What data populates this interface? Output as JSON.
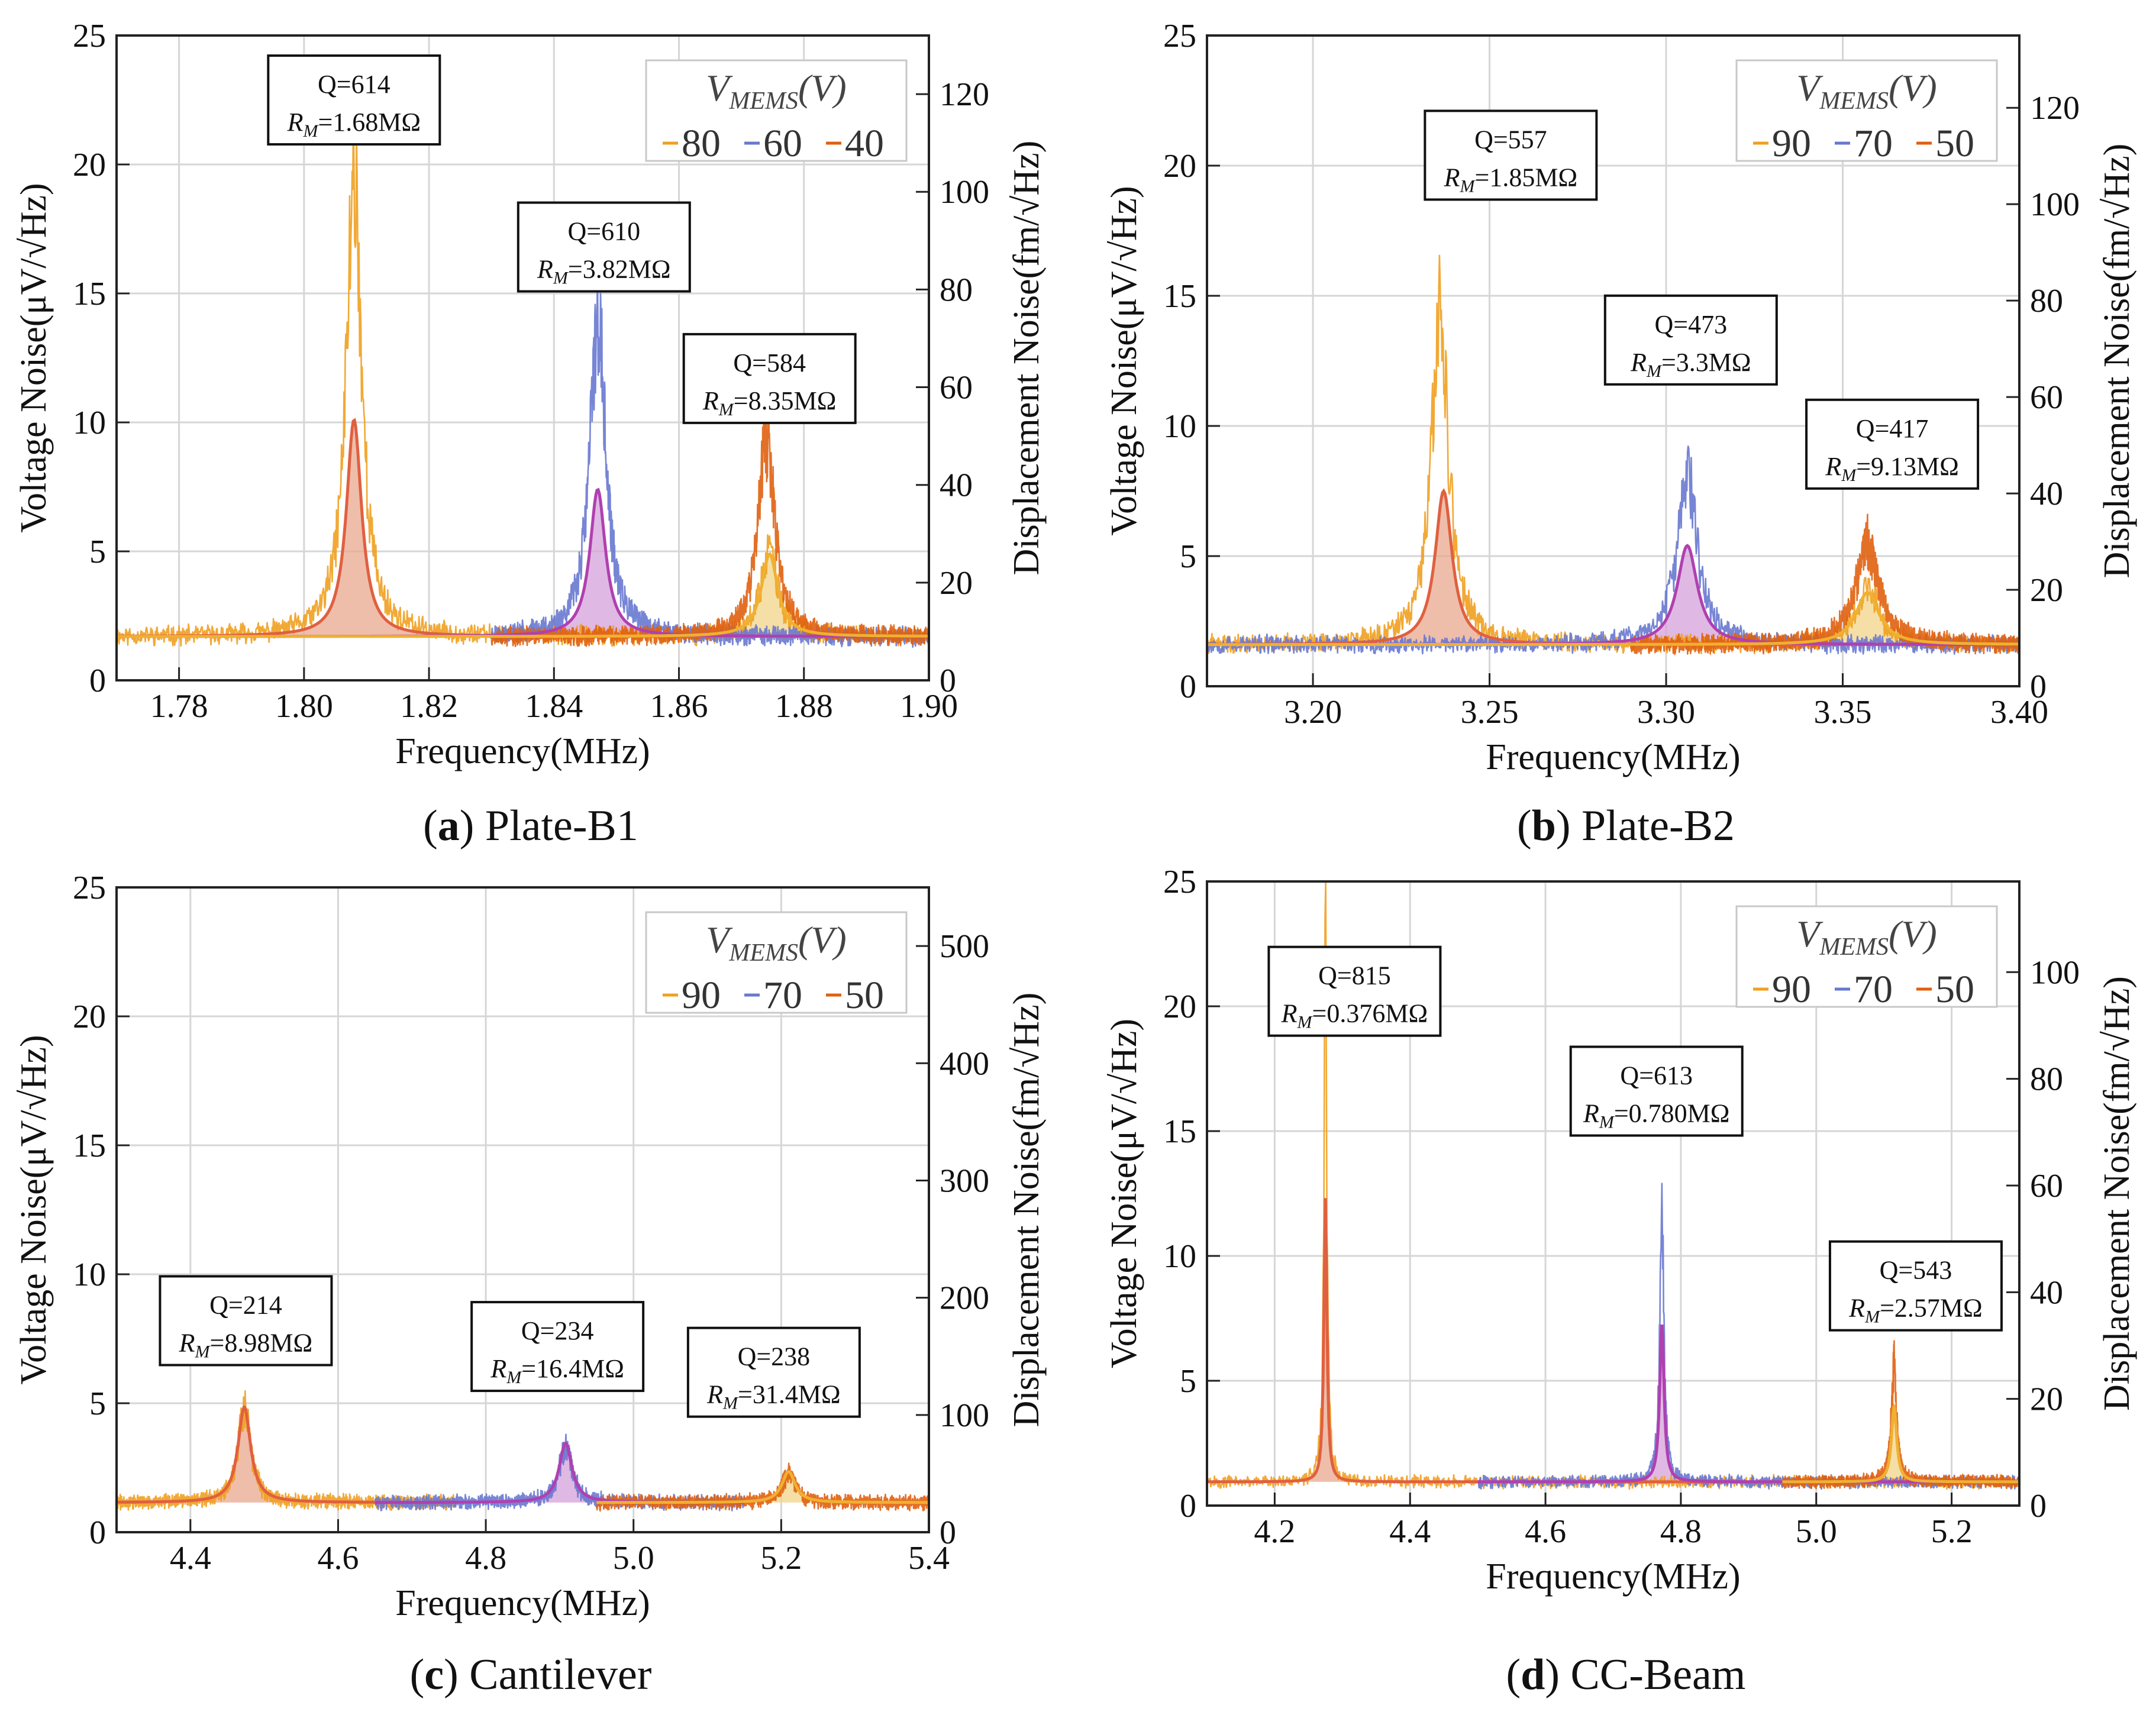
{
  "chart_data": [
    {
      "type": "line",
      "panel_letter": "a",
      "caption": "Plate-B1",
      "xlabel": "Frequency(MHz)",
      "ylabel_left": "Voltage Noise(μV/√Hz)",
      "ylabel_right": "Displacement Noise(fm/√Hz)",
      "xlim": [
        1.77,
        1.9
      ],
      "ylim": [
        0,
        25
      ],
      "ylim_right": [
        0,
        132
      ],
      "x_ticks": [
        1.78,
        1.8,
        1.82,
        1.84,
        1.86,
        1.88,
        1.9
      ],
      "x_tick_labels": [
        "1.78",
        "1.80",
        "1.82",
        "1.84",
        "1.86",
        "1.88",
        "1.90"
      ],
      "y_ticks": [
        0,
        5,
        10,
        15,
        20,
        25
      ],
      "y_tick_labels": [
        "0",
        "5",
        "10",
        "15",
        "20",
        "25"
      ],
      "y_right_ticks": [
        0,
        20,
        40,
        60,
        80,
        100,
        120
      ],
      "y_right_tick_labels": [
        "0",
        "20",
        "40",
        "60",
        "80",
        "100",
        "120"
      ],
      "grid": true,
      "baseline": 1.7,
      "legend": {
        "title": "V_MEMS(V)",
        "position": "top-right",
        "entries": [
          "80",
          "60",
          "40"
        ]
      },
      "series": [
        {
          "name": "80",
          "role": "noise",
          "color": "#F0A020",
          "x_range": [
            1.77,
            1.9
          ],
          "peaks": [
            {
              "f0": 1.808,
              "amp": 18.2,
              "q": 614
            },
            {
              "f0": 1.8745,
              "amp": 3.4,
              "q": 584
            }
          ],
          "spike": 20.0,
          "seed": 11
        },
        {
          "name": "60",
          "role": "noise",
          "color": "#6878D0",
          "x_range": [
            1.83,
            1.9
          ],
          "peaks": [
            {
              "f0": 1.847,
              "amp": 12.5,
              "q": 610
            }
          ],
          "spike": 14.3,
          "seed": 23
        },
        {
          "name": "40",
          "role": "noise",
          "color": "#E06010",
          "x_range": [
            1.83,
            1.9
          ],
          "peaks": [
            {
              "f0": 1.874,
              "amp": 7.6,
              "q": 584
            }
          ],
          "spike": 9.5,
          "seed": 37
        },
        {
          "name": "fit-80",
          "role": "fit",
          "color": "#E06040",
          "fill": "#EAA88E",
          "x_range": [
            1.77,
            1.9
          ],
          "peaks": [
            {
              "f0": 1.808,
              "amp": 8.4,
              "q": 614
            }
          ]
        },
        {
          "name": "fit-60",
          "role": "fit",
          "color": "#B040B0",
          "fill": "#D4A2DA",
          "x_range": [
            1.77,
            1.9
          ],
          "peaks": [
            {
              "f0": 1.847,
              "amp": 5.7,
              "q": 610
            }
          ]
        },
        {
          "name": "fit-40",
          "role": "fit",
          "color": "#F0B030",
          "fill": "#F2D488",
          "x_range": [
            1.77,
            1.9
          ],
          "peaks": [
            {
              "f0": 1.8745,
              "amp": 3.2,
              "q": 584
            }
          ]
        }
      ],
      "annotations": [
        {
          "q": "Q=614",
          "r_prefix": "R",
          "r_sub": "M",
          "r_value": "=1.68MΩ",
          "x": 1.808,
          "y": 22.5
        },
        {
          "q": "Q=610",
          "r_prefix": "R",
          "r_sub": "M",
          "r_value": "=3.82MΩ",
          "x": 1.848,
          "y": 16.8
        },
        {
          "q": "Q=584",
          "r_prefix": "R",
          "r_sub": "M",
          "r_value": "=8.35MΩ",
          "x": 1.8745,
          "y": 11.7
        }
      ]
    },
    {
      "type": "line",
      "panel_letter": "b",
      "caption": "Plate-B2",
      "xlabel": "Frequency(MHz)",
      "ylabel_left": "Voltage Noise(μV/√Hz)",
      "ylabel_right": "Displacement Noise(fm/√Hz)",
      "xlim": [
        3.17,
        3.4
      ],
      "ylim": [
        0,
        25
      ],
      "ylim_right": [
        0,
        135
      ],
      "x_ticks": [
        3.2,
        3.25,
        3.3,
        3.35,
        3.4
      ],
      "x_tick_labels": [
        "3.20",
        "3.25",
        "3.30",
        "3.35",
        "3.40"
      ],
      "y_ticks": [
        0,
        5,
        10,
        15,
        20,
        25
      ],
      "y_tick_labels": [
        "0",
        "5",
        "10",
        "15",
        "20",
        "25"
      ],
      "y_right_ticks": [
        0,
        20,
        40,
        60,
        80,
        100,
        120
      ],
      "y_right_tick_labels": [
        "0",
        "20",
        "40",
        "60",
        "80",
        "100",
        "120"
      ],
      "grid": true,
      "baseline": 1.6,
      "legend": {
        "title": "V_MEMS(V)",
        "position": "top-right",
        "entries": [
          "90",
          "70",
          "50"
        ]
      },
      "series": [
        {
          "name": "90",
          "role": "noise",
          "color": "#F0A020",
          "x_range": [
            3.17,
            3.4
          ],
          "peaks": [
            {
              "f0": 3.236,
              "amp": 12.6,
              "q": 557
            },
            {
              "f0": 3.357,
              "amp": 2.1,
              "q": 417
            }
          ],
          "spike": 15.7,
          "seed": 41
        },
        {
          "name": "70",
          "role": "noise",
          "color": "#6878D0",
          "x_range": [
            3.17,
            3.4
          ],
          "peaks": [
            {
              "f0": 3.306,
              "amp": 6.4,
              "q": 473
            }
          ],
          "spike": 9.0,
          "seed": 53
        },
        {
          "name": "50",
          "role": "noise",
          "color": "#E06010",
          "x_range": [
            3.29,
            3.4
          ],
          "peaks": [
            {
              "f0": 3.357,
              "amp": 3.8,
              "q": 417
            }
          ],
          "spike": 6.6,
          "seed": 67
        },
        {
          "name": "fit-90",
          "role": "fit",
          "color": "#E06040",
          "fill": "#EAA88E",
          "x_range": [
            3.17,
            3.4
          ],
          "peaks": [
            {
              "f0": 3.237,
              "amp": 5.9,
              "q": 557
            }
          ]
        },
        {
          "name": "fit-70",
          "role": "fit",
          "color": "#B040B0",
          "fill": "#D4A2DA",
          "x_range": [
            3.17,
            3.4
          ],
          "peaks": [
            {
              "f0": 3.306,
              "amp": 3.8,
              "q": 473
            }
          ]
        },
        {
          "name": "fit-50",
          "role": "fit",
          "color": "#F0B030",
          "fill": "#F2D488",
          "x_range": [
            3.17,
            3.4
          ],
          "peaks": [
            {
              "f0": 3.357,
              "amp": 2.0,
              "q": 417
            }
          ]
        }
      ],
      "annotations": [
        {
          "q": "Q=557",
          "r_prefix": "R",
          "r_sub": "M",
          "r_value": "=1.85MΩ",
          "x": 3.256,
          "y": 20.4
        },
        {
          "q": "Q=473",
          "r_prefix": "R",
          "r_sub": "M",
          "r_value": "=3.3MΩ",
          "x": 3.307,
          "y": 13.3
        },
        {
          "q": "Q=417",
          "r_prefix": "R",
          "r_sub": "M",
          "r_value": "=9.13MΩ",
          "x": 3.364,
          "y": 9.3
        }
      ]
    },
    {
      "type": "line",
      "panel_letter": "c",
      "caption": "Cantilever",
      "xlabel": "Frequency(MHz)",
      "ylabel_left": "Voltage Noise(μV/√Hz)",
      "ylabel_right": "Displacement Noise(fm/√Hz)",
      "xlim": [
        4.3,
        5.4
      ],
      "ylim": [
        0,
        25
      ],
      "ylim_right": [
        0,
        550
      ],
      "x_ticks": [
        4.4,
        4.6,
        4.8,
        5.0,
        5.2,
        5.4
      ],
      "x_tick_labels": [
        "4.4",
        "4.6",
        "4.8",
        "5.0",
        "5.2",
        "5.4"
      ],
      "y_ticks": [
        0,
        5,
        10,
        15,
        20,
        25
      ],
      "y_tick_labels": [
        "0",
        "5",
        "10",
        "15",
        "20",
        "25"
      ],
      "y_right_ticks": [
        0,
        100,
        200,
        300,
        400,
        500
      ],
      "y_right_tick_labels": [
        "0",
        "100",
        "200",
        "300",
        "400",
        "500"
      ],
      "grid": true,
      "baseline": 1.15,
      "legend": {
        "title": "V_MEMS(V)",
        "position": "top-right",
        "entries": [
          "90",
          "70",
          "50"
        ]
      },
      "series": [
        {
          "name": "90",
          "role": "noise",
          "color": "#F0A020",
          "x_range": [
            4.3,
            4.76
          ],
          "peaks": [
            {
              "f0": 4.473,
              "amp": 3.6,
              "q": 214
            }
          ],
          "spike": 5.0,
          "seed": 71
        },
        {
          "name": "70",
          "role": "noise",
          "color": "#6878D0",
          "x_range": [
            4.65,
            5.15
          ],
          "peaks": [
            {
              "f0": 4.908,
              "amp": 2.2,
              "q": 234
            }
          ],
          "spike": 3.5,
          "seed": 83
        },
        {
          "name": "50",
          "role": "noise",
          "color": "#E06010",
          "x_range": [
            4.95,
            5.4
          ],
          "peaks": [
            {
              "f0": 5.21,
              "amp": 1.1,
              "q": 238
            }
          ],
          "spike": 2.5,
          "seed": 97
        },
        {
          "name": "fit-90",
          "role": "fit",
          "color": "#E06040",
          "fill": "#EAA88E",
          "x_range": [
            4.3,
            4.76
          ],
          "peaks": [
            {
              "f0": 4.473,
              "amp": 3.7,
              "q": 214
            }
          ]
        },
        {
          "name": "fit-70",
          "role": "fit",
          "color": "#B040B0",
          "fill": "#D4A2DA",
          "x_range": [
            4.65,
            5.15
          ],
          "peaks": [
            {
              "f0": 4.908,
              "amp": 2.3,
              "q": 234
            }
          ]
        },
        {
          "name": "fit-50",
          "role": "fit",
          "color": "#F0B030",
          "fill": "#F2D488",
          "x_range": [
            4.95,
            5.4
          ],
          "peaks": [
            {
              "f0": 5.21,
              "amp": 1.2,
              "q": 238
            }
          ]
        }
      ],
      "annotations": [
        {
          "q": "Q=214",
          "r_prefix": "R",
          "r_sub": "M",
          "r_value": "=8.98MΩ",
          "x": 4.475,
          "y": 8.2
        },
        {
          "q": "Q=234",
          "r_prefix": "R",
          "r_sub": "M",
          "r_value": "=16.4MΩ",
          "x": 4.897,
          "y": 7.2
        },
        {
          "q": "Q=238",
          "r_prefix": "R",
          "r_sub": "M",
          "r_value": "=31.4MΩ",
          "x": 5.19,
          "y": 6.2
        }
      ]
    },
    {
      "type": "line",
      "panel_letter": "d",
      "caption": "CC-Beam",
      "xlabel": "Frequency(MHz)",
      "ylabel_left": "Voltage Noise(μV/√Hz)",
      "ylabel_right": "Displacement Noise(fm/√Hz)",
      "xlim": [
        4.1,
        5.3
      ],
      "ylim": [
        0,
        25
      ],
      "ylim_right": [
        0,
        117
      ],
      "x_ticks": [
        4.2,
        4.4,
        4.6,
        4.8,
        5.0,
        5.2
      ],
      "x_tick_labels": [
        "4.2",
        "4.4",
        "4.6",
        "4.8",
        "5.0",
        "5.2"
      ],
      "y_ticks": [
        0,
        5,
        10,
        15,
        20,
        25
      ],
      "y_tick_labels": [
        "0",
        "5",
        "10",
        "15",
        "20",
        "25"
      ],
      "y_right_ticks": [
        0,
        20,
        40,
        60,
        80,
        100
      ],
      "y_right_tick_labels": [
        "0",
        "20",
        "40",
        "60",
        "80",
        "100"
      ],
      "grid": true,
      "baseline": 0.95,
      "legend": {
        "title": "V_MEMS(V)",
        "position": "top-right",
        "entries": [
          "90",
          "70",
          "50"
        ]
      },
      "series": [
        {
          "name": "90",
          "role": "noise",
          "color": "#F0A020",
          "x_range": [
            4.1,
            5.3
          ],
          "peaks": [
            {
              "f0": 4.275,
              "amp": 21.0,
              "q": 815
            }
          ],
          "spike": 25.0,
          "seed": 101
        },
        {
          "name": "70",
          "role": "noise",
          "color": "#6878D0",
          "x_range": [
            4.5,
            5.3
          ],
          "peaks": [
            {
              "f0": 4.772,
              "amp": 10.0,
              "q": 613
            }
          ],
          "spike": 12.9,
          "seed": 113
        },
        {
          "name": "50",
          "role": "noise",
          "color": "#E06010",
          "x_range": [
            4.95,
            5.3
          ],
          "peaks": [
            {
              "f0": 5.115,
              "amp": 4.6,
              "q": 543
            }
          ],
          "spike": 6.6,
          "seed": 127
        },
        {
          "name": "fit-90",
          "role": "fit",
          "color": "#E06040",
          "fill": "#EAA88E",
          "x_range": [
            4.1,
            5.3
          ],
          "peaks": [
            {
              "f0": 4.275,
              "amp": 11.4,
              "q": 815
            }
          ]
        },
        {
          "name": "fit-70",
          "role": "fit",
          "color": "#B040B0",
          "fill": "#D4A2DA",
          "x_range": [
            4.5,
            5.3
          ],
          "peaks": [
            {
              "f0": 4.772,
              "amp": 6.3,
              "q": 613
            }
          ]
        },
        {
          "name": "fit-50",
          "role": "fit",
          "color": "#F0B030",
          "fill": "#F2D488",
          "x_range": [
            4.95,
            5.3
          ],
          "peaks": [
            {
              "f0": 5.115,
              "amp": 3.0,
              "q": 543
            }
          ]
        }
      ],
      "annotations": [
        {
          "q": "Q=815",
          "r_prefix": "R",
          "r_sub": "M",
          "r_value": "=0.376MΩ",
          "x": 4.318,
          "y": 20.6
        },
        {
          "q": "Q=613",
          "r_prefix": "R",
          "r_sub": "M",
          "r_value": "=0.780MΩ",
          "x": 4.764,
          "y": 16.6
        },
        {
          "q": "Q=543",
          "r_prefix": "R",
          "r_sub": "M",
          "r_value": "=2.57MΩ",
          "x": 5.147,
          "y": 8.8
        }
      ]
    }
  ]
}
